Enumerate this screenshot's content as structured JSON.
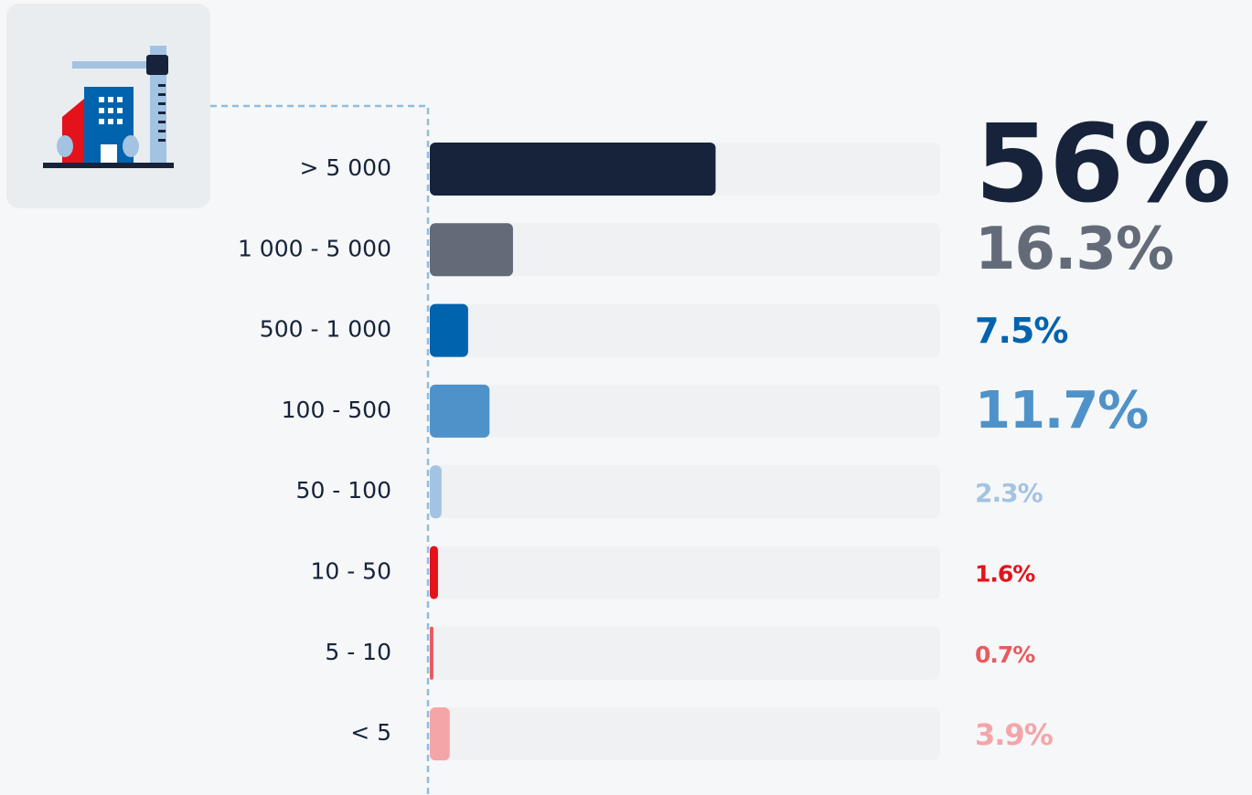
{
  "chart_data": {
    "type": "bar",
    "categories": [
      "> 5 000",
      "1 000 - 5 000",
      "500 - 1 000",
      "100 - 500",
      "50 - 100",
      "10 - 50",
      "5 - 10",
      "< 5"
    ],
    "values": [
      56,
      16.3,
      7.5,
      11.7,
      2.3,
      1.6,
      0.7,
      3.9
    ],
    "value_labels": [
      "56%",
      "16.3%",
      "7.5%",
      "11.7%",
      "2.3%",
      "1.6%",
      "0.7%",
      "3.9%"
    ],
    "colors": [
      "#16233a",
      "#646b78",
      "#0063ae",
      "#4f92c9",
      "#a3c3e2",
      "#e3121b",
      "#e85a5f",
      "#f4a5a8"
    ],
    "xlim": [
      0,
      100
    ]
  }
}
